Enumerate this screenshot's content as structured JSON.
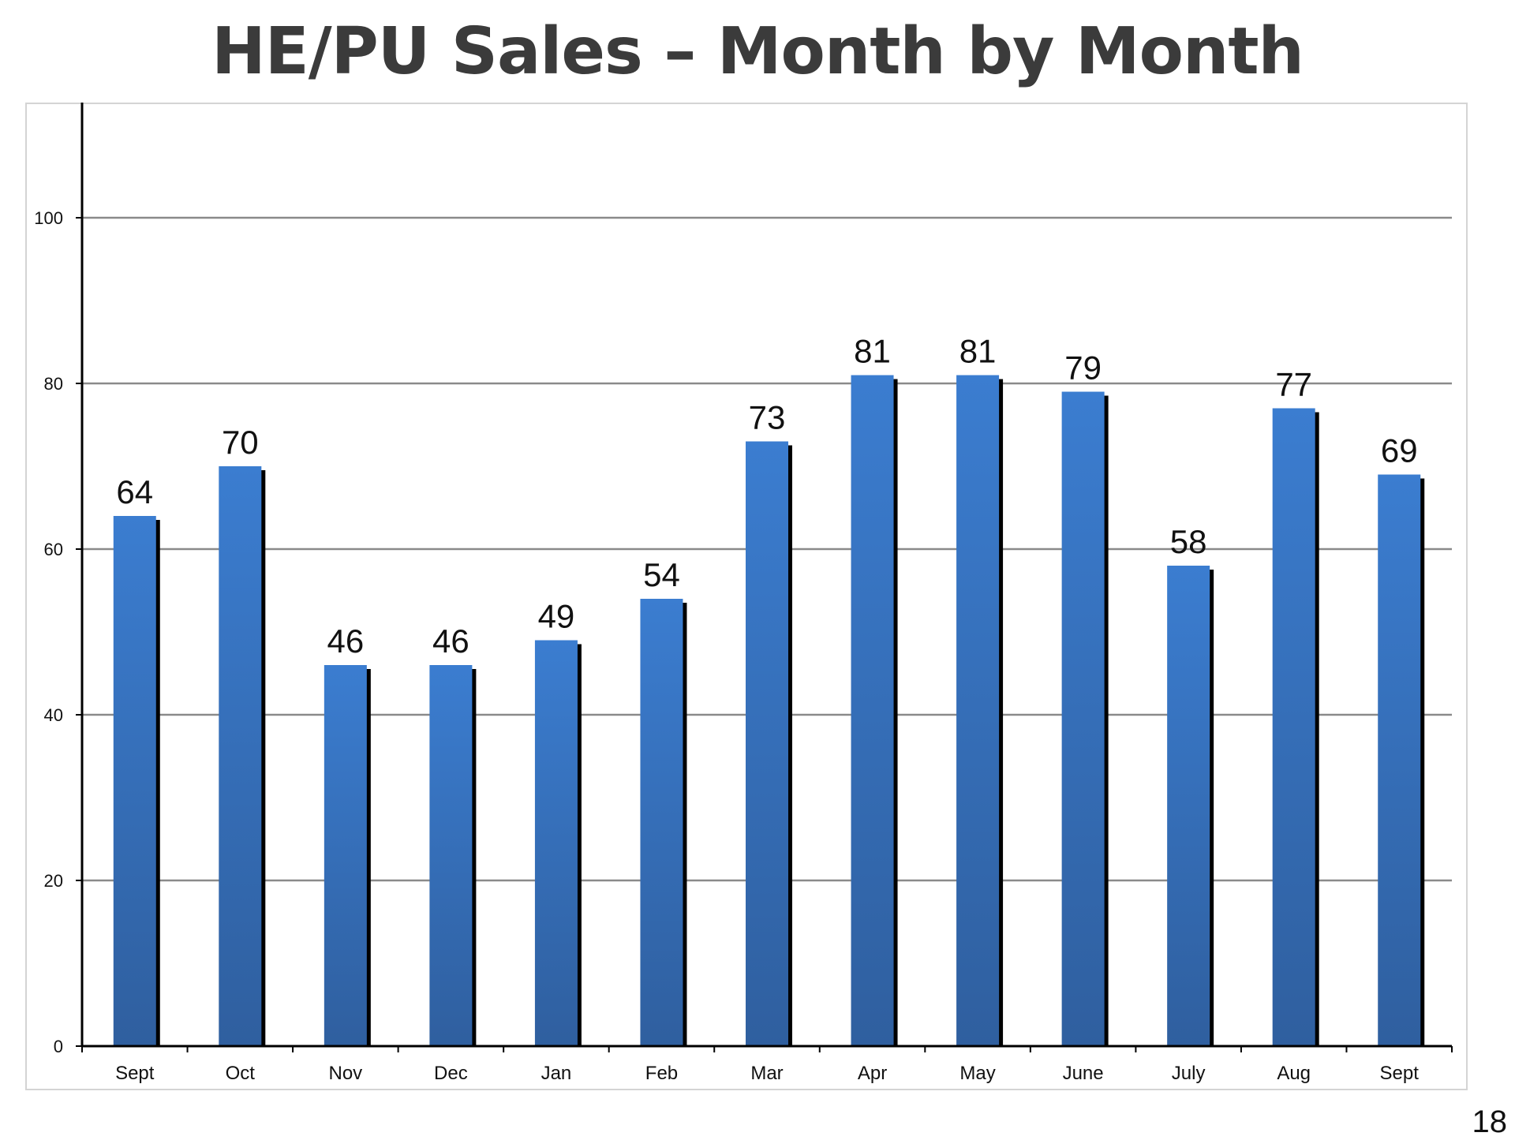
{
  "slide": {
    "title": "HE/PU Sales – Month by Month",
    "page_number": "18"
  },
  "colors": {
    "bar_top": "#3b7dd0",
    "bar_bottom": "#2f5f9f",
    "bar_shadow": "#000000",
    "gridline": "#8a8a8a",
    "axis": "#000000",
    "title": "#3b3b3b"
  },
  "chart_data": {
    "type": "bar",
    "title": "HE/PU Sales – Month by Month",
    "xlabel": "",
    "ylabel": "",
    "categories": [
      "Sept",
      "Oct",
      "Nov",
      "Dec",
      "Jan",
      "Feb",
      "Mar",
      "Apr",
      "May",
      "June",
      "July",
      "Aug",
      "Sept"
    ],
    "values": [
      64,
      70,
      46,
      46,
      49,
      54,
      73,
      81,
      81,
      79,
      58,
      77,
      69
    ],
    "ylim": [
      0,
      110
    ],
    "yticks": [
      0,
      20,
      40,
      60,
      80,
      100
    ],
    "grid": true,
    "legend": "none",
    "data_labels": true
  }
}
